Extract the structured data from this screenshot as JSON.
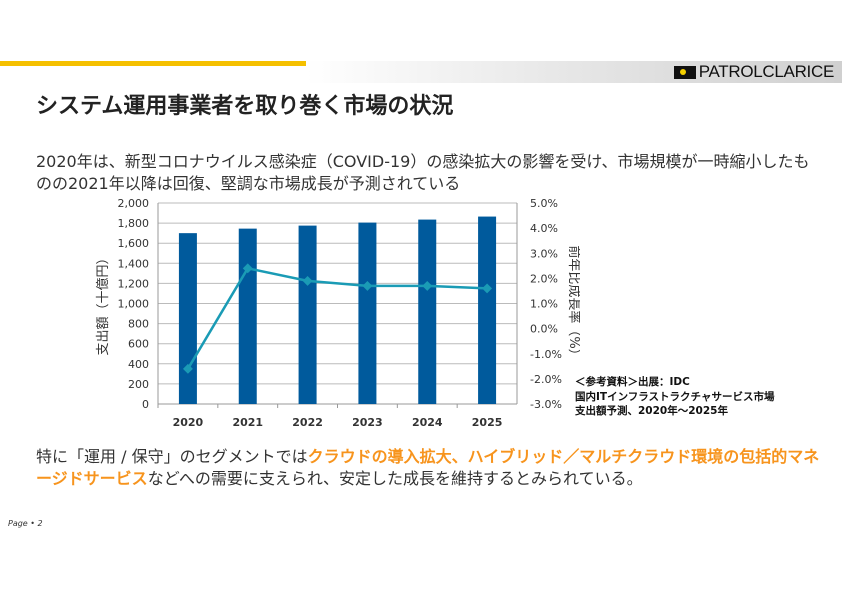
{
  "header": {
    "logo_text": "PATROLCLARICE",
    "title": "システム運用事業者を取り巻く市場の状況"
  },
  "lead": "2020年は、新型コロナウイルス感染症（COVID-19）の感染拡大の影響を受け、市場規模が一時縮小したものの2021年以降は回復、堅調な市場成長が予測されている",
  "source": {
    "line1": "＜参考資料＞出展：IDC",
    "line2": "国内ITインフラストラクチャサービス市場",
    "line3": "支出額予測、2020年～2025年"
  },
  "bottom": {
    "part1": "特に「運用 / 保守」のセグメントでは",
    "highlight": "クラウドの導入拡大、ハイブリッド／マルチクラウド環境の包括的マネージドサービス",
    "part2": "などへの需要に支えられ、安定した成長を維持するとみられている。"
  },
  "footer": {
    "page_label": "Page",
    "page_number": "2"
  },
  "chart_data": {
    "type": "bar",
    "categories": [
      "2020",
      "2021",
      "2022",
      "2023",
      "2024",
      "2025"
    ],
    "series": [
      {
        "name": "支出額",
        "type": "bar",
        "axis": "left",
        "color": "#005a9c",
        "values": [
          1700,
          1745,
          1775,
          1805,
          1835,
          1865
        ]
      },
      {
        "name": "前年比成長率",
        "type": "line",
        "axis": "right",
        "color": "#1a9bb5",
        "values": [
          -1.6,
          2.4,
          1.9,
          1.7,
          1.7,
          1.6
        ]
      }
    ],
    "ylabel": "支出額（十億円）",
    "ylabel_right": "前年比成長率（%）",
    "ylim": [
      0,
      2000
    ],
    "yticks": [
      "0",
      "200",
      "400",
      "600",
      "800",
      "1,000",
      "1,200",
      "1,400",
      "1,600",
      "1,800",
      "2,000"
    ],
    "ylim_right": [
      -3,
      5
    ],
    "yticks_right": [
      "-3.0%",
      "-2.0%",
      "-1.0%",
      "0.0%",
      "1.0%",
      "2.0%",
      "3.0%",
      "4.0%",
      "5.0%"
    ],
    "grid": true
  }
}
